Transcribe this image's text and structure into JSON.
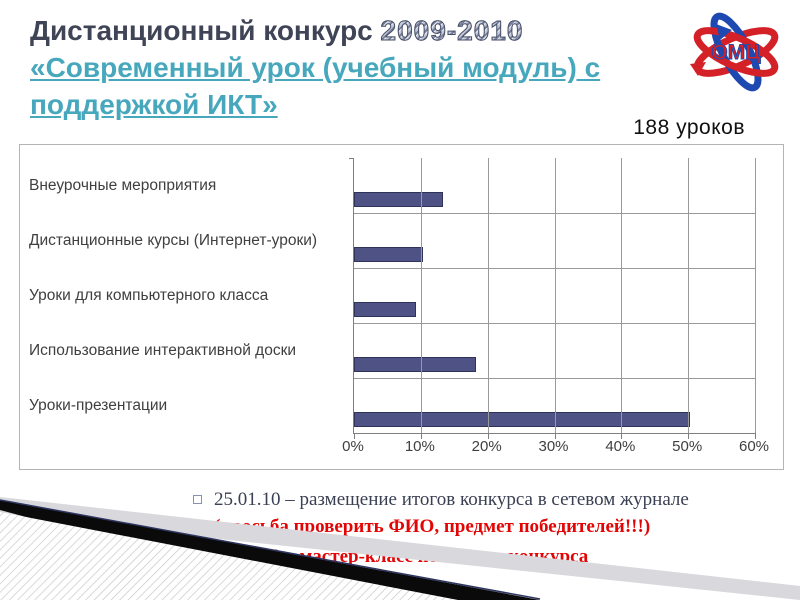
{
  "slide": {
    "title": {
      "line1_normal": "Дистанционный конкурс ",
      "line1_year": "2009-2010",
      "line2": "«Современный урок (учебный модуль) с",
      "line3": "поддержкой ИКТ»"
    },
    "lessons_count": "188 уроков",
    "logo_text": "ОМЦ",
    "colors": {
      "title_dark": "#3F4456",
      "title_link_teal": "#47A8BD",
      "bar_fill": "#4F5284",
      "footer_red": "#E30505",
      "logo_red": "#D42027",
      "logo_blue": "#1D49B0"
    }
  },
  "chart_data": {
    "type": "bar",
    "orientation": "horizontal",
    "title": "",
    "xlabel": "",
    "ylabel": "",
    "categories": [
      "Внеурочные мероприятия",
      "Дистанционные курсы (Интернет-уроки)",
      "Уроки для компьютерного класса",
      "Использование интерактивной доски",
      "Уроки-презентации"
    ],
    "values": [
      13,
      10,
      9,
      18,
      50
    ],
    "unit": "%",
    "xlim": [
      0,
      60
    ],
    "x_ticks": [
      "0%",
      "10%",
      "20%",
      "30%",
      "40%",
      "50%",
      "60%"
    ],
    "grid": true,
    "legend": false
  },
  "footer": {
    "bullets": [
      {
        "line1": "25.01.10 – размещение итогов конкурса в сетевом журнале",
        "line2": "(просьба проверить ФИО, предмет победителей!!!)"
      },
      {
        "line1": "10.02.10 – мастер-класс по итогам конкурса"
      }
    ]
  }
}
